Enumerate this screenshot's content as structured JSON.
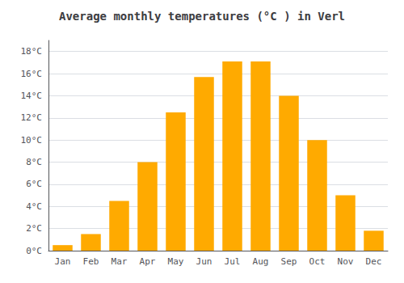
{
  "chart_data": {
    "type": "bar",
    "title": "Average monthly temperatures (°C ) in Verl",
    "categories": [
      "Jan",
      "Feb",
      "Mar",
      "Apr",
      "May",
      "Jun",
      "Jul",
      "Aug",
      "Sep",
      "Oct",
      "Nov",
      "Dec"
    ],
    "values": [
      0.5,
      1.5,
      4.5,
      8.0,
      12.5,
      15.7,
      17.1,
      17.1,
      14.0,
      10.0,
      5.0,
      1.8
    ],
    "color": "#FFAA00",
    "ylim": [
      0,
      19
    ],
    "yticks": [
      {
        "value": 0,
        "label": "0°C"
      },
      {
        "value": 2,
        "label": "2°C"
      },
      {
        "value": 4,
        "label": "4°C"
      },
      {
        "value": 6,
        "label": "6°C"
      },
      {
        "value": 8,
        "label": "8°C"
      },
      {
        "value": 10,
        "label": "10°C"
      },
      {
        "value": 12,
        "label": "12°C"
      },
      {
        "value": 14,
        "label": "14°C"
      },
      {
        "value": 16,
        "label": "16°C"
      },
      {
        "value": 18,
        "label": "18°C"
      }
    ],
    "grid": true
  }
}
